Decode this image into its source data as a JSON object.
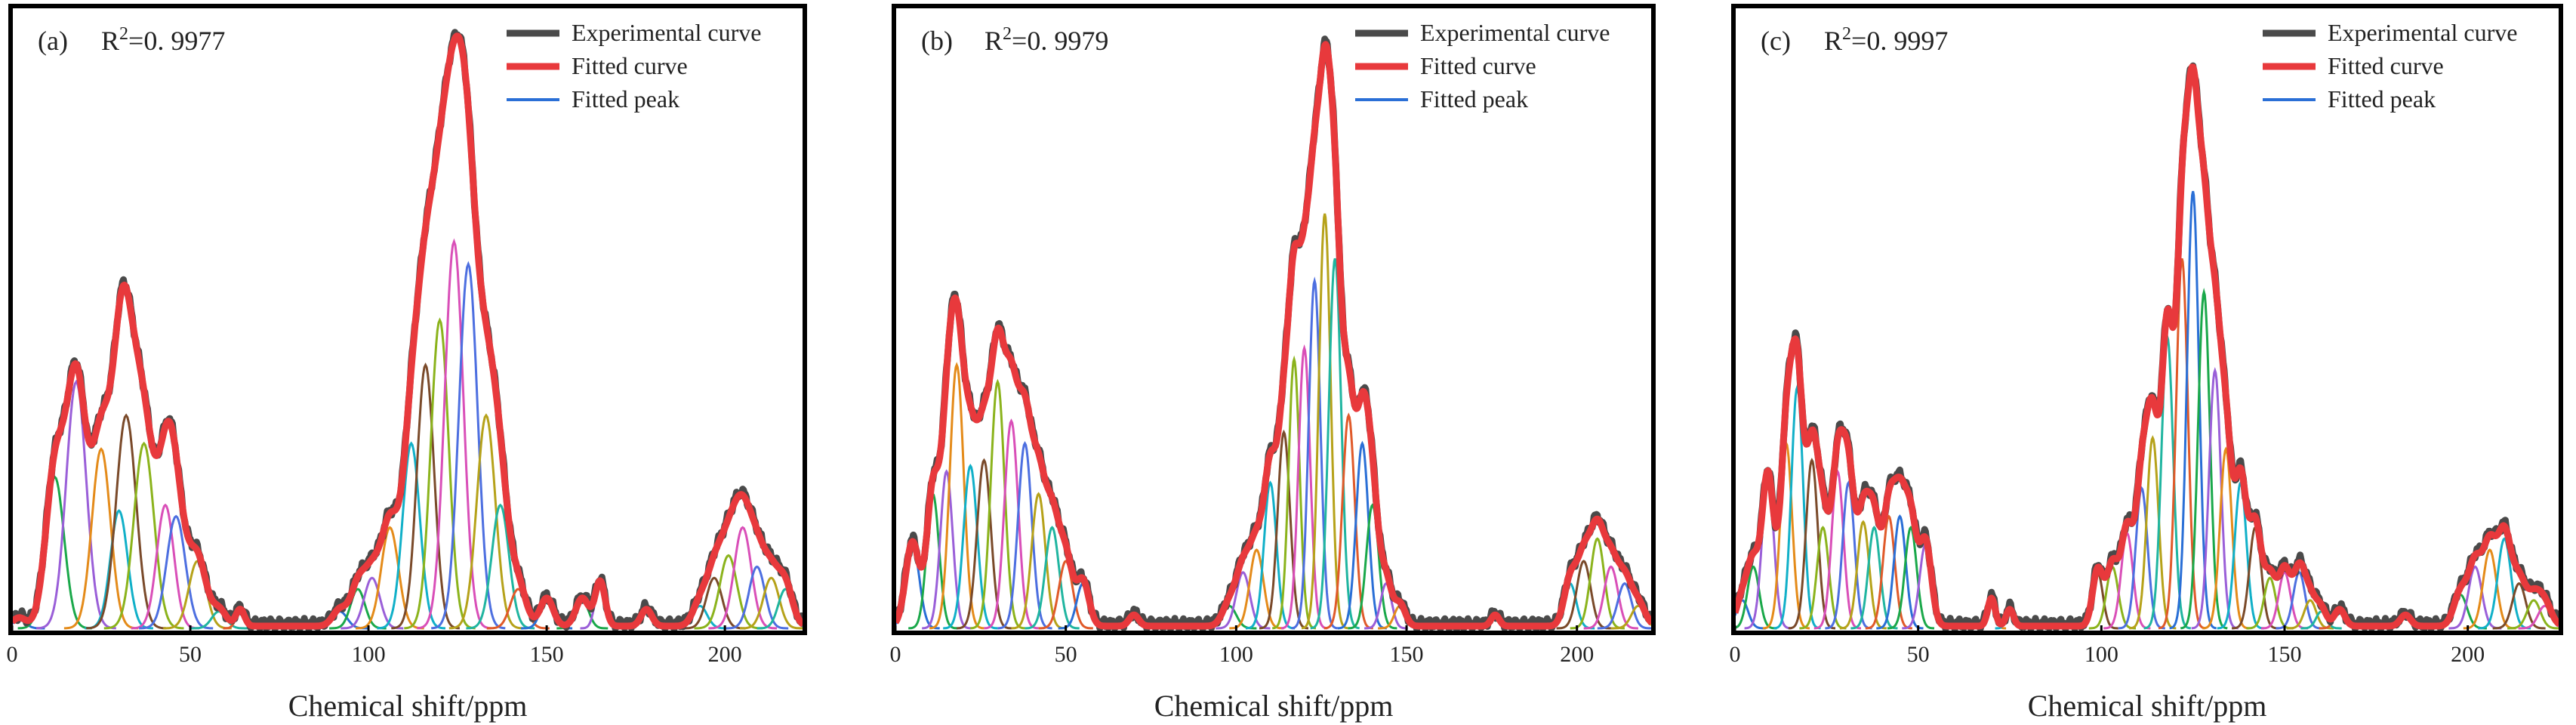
{
  "chart_data": [
    {
      "type": "line",
      "panel_label": "(a)",
      "r2_prefix": "R",
      "r2_sup": "2",
      "r2_value": "=0. 9977",
      "xlabel": "Chemical shift/ppm",
      "xticks": [
        0,
        50,
        100,
        150,
        200
      ],
      "xlim": [
        0,
        222
      ],
      "ylim": [
        0,
        1.0
      ],
      "legend": {
        "placement": "top-right",
        "entries": [
          "Experimental curve",
          "Fitted curve",
          "Fitted peak"
        ]
      },
      "series": [
        {
          "name": "Experimental curve",
          "color": "#4a4a4a"
        },
        {
          "name": "Fitted curve",
          "color": "#e8393c"
        },
        {
          "name": "Fitted peak",
          "color": "#2a6fd6"
        }
      ],
      "peaks": [
        {
          "x": 2,
          "y": 0.015,
          "w": 1.8
        },
        {
          "x": 12,
          "y": 0.27,
          "w": 2.6
        },
        {
          "x": 18,
          "y": 0.44,
          "w": 2.8
        },
        {
          "x": 25,
          "y": 0.32,
          "w": 2.6
        },
        {
          "x": 30,
          "y": 0.21,
          "w": 2.4
        },
        {
          "x": 32,
          "y": 0.38,
          "w": 2.8
        },
        {
          "x": 37,
          "y": 0.33,
          "w": 2.8
        },
        {
          "x": 43,
          "y": 0.22,
          "w": 2.4
        },
        {
          "x": 46,
          "y": 0.2,
          "w": 2.6
        },
        {
          "x": 52,
          "y": 0.12,
          "w": 2.4
        },
        {
          "x": 58,
          "y": 0.03,
          "w": 2
        },
        {
          "x": 64,
          "y": 0.03,
          "w": 1.2
        },
        {
          "x": 92,
          "y": 0.03,
          "w": 2
        },
        {
          "x": 97,
          "y": 0.07,
          "w": 2
        },
        {
          "x": 101,
          "y": 0.09,
          "w": 2.2
        },
        {
          "x": 106,
          "y": 0.18,
          "w": 2.4
        },
        {
          "x": 112,
          "y": 0.33,
          "w": 2.4
        },
        {
          "x": 116,
          "y": 0.47,
          "w": 2.4
        },
        {
          "x": 120,
          "y": 0.55,
          "w": 2.5
        },
        {
          "x": 124,
          "y": 0.69,
          "w": 2.6
        },
        {
          "x": 128,
          "y": 0.65,
          "w": 2.6
        },
        {
          "x": 133,
          "y": 0.38,
          "w": 2.6
        },
        {
          "x": 137,
          "y": 0.22,
          "w": 2.4
        },
        {
          "x": 142,
          "y": 0.07,
          "w": 2.2
        },
        {
          "x": 150,
          "y": 0.05,
          "w": 1.8
        },
        {
          "x": 160,
          "y": 0.05,
          "w": 1.8
        },
        {
          "x": 165,
          "y": 0.08,
          "w": 1.4
        },
        {
          "x": 178,
          "y": 0.03,
          "w": 1.5
        },
        {
          "x": 193,
          "y": 0.04,
          "w": 2
        },
        {
          "x": 197,
          "y": 0.09,
          "w": 2.2
        },
        {
          "x": 201,
          "y": 0.13,
          "w": 2.4
        },
        {
          "x": 205,
          "y": 0.18,
          "w": 2.4
        },
        {
          "x": 209,
          "y": 0.11,
          "w": 2.2
        },
        {
          "x": 213,
          "y": 0.09,
          "w": 2.2
        },
        {
          "x": 217,
          "y": 0.07,
          "w": 2
        }
      ]
    },
    {
      "type": "line",
      "panel_label": "(b)",
      "r2_prefix": "R",
      "r2_sup": "2",
      "r2_value": "=0. 9979",
      "xlabel": "Chemical shift/ppm",
      "xticks": [
        0,
        50,
        100,
        150,
        200
      ],
      "xlim": [
        0,
        222
      ],
      "ylim": [
        0,
        1.0
      ],
      "legend": {
        "placement": "top-right",
        "entries": [
          "Experimental curve",
          "Fitted curve",
          "Fitted peak"
        ]
      },
      "series": [
        {
          "name": "Experimental curve",
          "color": "#4a4a4a"
        },
        {
          "name": "Fitted curve",
          "color": "#e8393c"
        },
        {
          "name": "Fitted peak",
          "color": "#2a6fd6"
        }
      ],
      "peaks": [
        {
          "x": 5,
          "y": 0.15,
          "w": 2
        },
        {
          "x": 11,
          "y": 0.24,
          "w": 1.8
        },
        {
          "x": 15,
          "y": 0.28,
          "w": 1.8
        },
        {
          "x": 18,
          "y": 0.47,
          "w": 2
        },
        {
          "x": 22,
          "y": 0.29,
          "w": 2
        },
        {
          "x": 26,
          "y": 0.3,
          "w": 2
        },
        {
          "x": 30,
          "y": 0.44,
          "w": 2
        },
        {
          "x": 34,
          "y": 0.37,
          "w": 2
        },
        {
          "x": 38,
          "y": 0.33,
          "w": 2
        },
        {
          "x": 42,
          "y": 0.24,
          "w": 2
        },
        {
          "x": 46,
          "y": 0.18,
          "w": 2
        },
        {
          "x": 50,
          "y": 0.12,
          "w": 2
        },
        {
          "x": 55,
          "y": 0.08,
          "w": 1.8
        },
        {
          "x": 98,
          "y": 0.04,
          "w": 2
        },
        {
          "x": 102,
          "y": 0.1,
          "w": 2
        },
        {
          "x": 106,
          "y": 0.14,
          "w": 2
        },
        {
          "x": 110,
          "y": 0.26,
          "w": 1.8
        },
        {
          "x": 114,
          "y": 0.35,
          "w": 1.8
        },
        {
          "x": 117,
          "y": 0.48,
          "w": 1.6
        },
        {
          "x": 120,
          "y": 0.5,
          "w": 1.7
        },
        {
          "x": 123,
          "y": 0.62,
          "w": 1.7
        },
        {
          "x": 126,
          "y": 0.74,
          "w": 1.7
        },
        {
          "x": 129,
          "y": 0.66,
          "w": 1.8
        },
        {
          "x": 133,
          "y": 0.38,
          "w": 1.8
        },
        {
          "x": 137,
          "y": 0.33,
          "w": 1.8
        },
        {
          "x": 140,
          "y": 0.22,
          "w": 1.8
        },
        {
          "x": 144,
          "y": 0.08,
          "w": 1.6
        },
        {
          "x": 148,
          "y": 0.04,
          "w": 1.6
        },
        {
          "x": 198,
          "y": 0.08,
          "w": 1.8
        },
        {
          "x": 202,
          "y": 0.12,
          "w": 2
        },
        {
          "x": 206,
          "y": 0.16,
          "w": 2
        },
        {
          "x": 210,
          "y": 0.11,
          "w": 2
        },
        {
          "x": 214,
          "y": 0.08,
          "w": 2
        },
        {
          "x": 218,
          "y": 0.04,
          "w": 2
        },
        {
          "x": 176,
          "y": 0.02,
          "w": 1.2
        },
        {
          "x": 70,
          "y": 0.02,
          "w": 1.4
        }
      ]
    },
    {
      "type": "line",
      "panel_label": "(c)",
      "r2_prefix": "R",
      "r2_sup": "2",
      "r2_value": "=0. 9997",
      "xlabel": "Chemical shift/ppm",
      "xticks": [
        0,
        50,
        100,
        150,
        200
      ],
      "xlim": [
        0,
        225
      ],
      "ylim": [
        0,
        1.0
      ],
      "legend": {
        "placement": "top-right",
        "entries": [
          "Experimental curve",
          "Fitted curve",
          "Fitted peak"
        ]
      },
      "series": [
        {
          "name": "Experimental curve",
          "color": "#4a4a4a"
        },
        {
          "name": "Fitted curve",
          "color": "#e8393c"
        },
        {
          "name": "Fitted peak",
          "color": "#2a6fd6"
        }
      ],
      "peaks": [
        {
          "x": 2,
          "y": 0.05,
          "w": 1.6
        },
        {
          "x": 5,
          "y": 0.11,
          "w": 1.6
        },
        {
          "x": 9,
          "y": 0.27,
          "w": 1.6
        },
        {
          "x": 14,
          "y": 0.33,
          "w": 1.6
        },
        {
          "x": 17,
          "y": 0.43,
          "w": 1.6
        },
        {
          "x": 21,
          "y": 0.3,
          "w": 1.6
        },
        {
          "x": 24,
          "y": 0.18,
          "w": 1.6
        },
        {
          "x": 28,
          "y": 0.28,
          "w": 1.6
        },
        {
          "x": 31,
          "y": 0.26,
          "w": 1.6
        },
        {
          "x": 35,
          "y": 0.19,
          "w": 1.6
        },
        {
          "x": 38,
          "y": 0.18,
          "w": 1.6
        },
        {
          "x": 42,
          "y": 0.2,
          "w": 1.6
        },
        {
          "x": 45,
          "y": 0.2,
          "w": 1.6
        },
        {
          "x": 48,
          "y": 0.18,
          "w": 1.6
        },
        {
          "x": 52,
          "y": 0.15,
          "w": 1.6
        },
        {
          "x": 70,
          "y": 0.05,
          "w": 1
        },
        {
          "x": 75,
          "y": 0.03,
          "w": 1
        },
        {
          "x": 99,
          "y": 0.1,
          "w": 1.4
        },
        {
          "x": 103,
          "y": 0.11,
          "w": 1.6
        },
        {
          "x": 107,
          "y": 0.17,
          "w": 1.6
        },
        {
          "x": 111,
          "y": 0.25,
          "w": 1.6
        },
        {
          "x": 114,
          "y": 0.34,
          "w": 1.6
        },
        {
          "x": 118,
          "y": 0.52,
          "w": 1.6
        },
        {
          "x": 122,
          "y": 0.66,
          "w": 1.6
        },
        {
          "x": 125,
          "y": 0.78,
          "w": 1.6
        },
        {
          "x": 128,
          "y": 0.6,
          "w": 1.6
        },
        {
          "x": 131,
          "y": 0.46,
          "w": 1.6
        },
        {
          "x": 134,
          "y": 0.32,
          "w": 1.6
        },
        {
          "x": 138,
          "y": 0.26,
          "w": 1.6
        },
        {
          "x": 142,
          "y": 0.18,
          "w": 1.6
        },
        {
          "x": 146,
          "y": 0.09,
          "w": 1.6
        },
        {
          "x": 150,
          "y": 0.1,
          "w": 1.6
        },
        {
          "x": 154,
          "y": 0.1,
          "w": 1.6
        },
        {
          "x": 157,
          "y": 0.05,
          "w": 1.6
        },
        {
          "x": 160,
          "y": 0.03,
          "w": 1.4
        },
        {
          "x": 165,
          "y": 0.03,
          "w": 1.4
        },
        {
          "x": 183,
          "y": 0.02,
          "w": 1.4
        },
        {
          "x": 198,
          "y": 0.06,
          "w": 1.8
        },
        {
          "x": 202,
          "y": 0.11,
          "w": 1.8
        },
        {
          "x": 206,
          "y": 0.14,
          "w": 1.8
        },
        {
          "x": 210,
          "y": 0.16,
          "w": 1.8
        },
        {
          "x": 214,
          "y": 0.08,
          "w": 1.8
        },
        {
          "x": 218,
          "y": 0.05,
          "w": 1.8
        },
        {
          "x": 221,
          "y": 0.04,
          "w": 1.8
        }
      ]
    }
  ]
}
